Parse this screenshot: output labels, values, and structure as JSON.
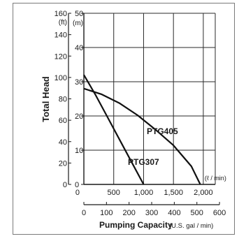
{
  "chart_data": {
    "type": "line",
    "ylabel": "Total Head",
    "xlabel": "Pumping Capacity",
    "y_axis_ft": {
      "unit": "(ft)",
      "range": [
        0,
        160
      ],
      "ticks": [
        {
          "value": 0,
          "label": "0"
        },
        {
          "value": 20,
          "label": "20"
        },
        {
          "value": 40,
          "label": "40"
        },
        {
          "value": 60,
          "label": "60"
        },
        {
          "value": 80,
          "label": "80"
        },
        {
          "value": 100,
          "label": "100"
        },
        {
          "value": 120,
          "label": "120"
        },
        {
          "value": 140,
          "label": "140"
        },
        {
          "value": 160,
          "label": "160"
        }
      ]
    },
    "y_axis_m": {
      "unit": "(m)",
      "range": [
        0,
        50
      ],
      "ticks": [
        {
          "value": 0,
          "label": "0"
        },
        {
          "value": 10,
          "label": "10"
        },
        {
          "value": 20,
          "label": "20"
        },
        {
          "value": 30,
          "label": "30"
        },
        {
          "value": 40,
          "label": "40"
        },
        {
          "value": 50,
          "label": "50"
        }
      ]
    },
    "x_axis_lmin": {
      "unit": "(ℓ / min)",
      "range": [
        0,
        2200
      ],
      "ticks": [
        {
          "value": 0,
          "label": "0"
        },
        {
          "value": 500,
          "label": "500"
        },
        {
          "value": 1000,
          "label": "1,000"
        },
        {
          "value": 1500,
          "label": "1,500"
        },
        {
          "value": 2000,
          "label": "2,000"
        }
      ]
    },
    "x_axis_gal": {
      "unit": "(U.S. gal / min)",
      "ticks": [
        {
          "value": 0,
          "label": "0"
        },
        {
          "value": 100,
          "label": "100"
        },
        {
          "value": 200,
          "label": "200"
        },
        {
          "value": 300,
          "label": "300"
        },
        {
          "value": 400,
          "label": "400"
        },
        {
          "value": 500,
          "label": "500"
        },
        {
          "value": 600,
          "label": "600"
        }
      ]
    },
    "grid": true,
    "series": [
      {
        "name": "PTG405",
        "unit_x": "ℓ/min",
        "unit_y": "m",
        "x": [
          0,
          300,
          600,
          900,
          1200,
          1500,
          1800,
          1950
        ],
        "y": [
          28,
          26.3,
          23.7,
          20.2,
          16,
          11.4,
          5.3,
          0
        ]
      },
      {
        "name": "PTG307",
        "unit_x": "ℓ/min",
        "unit_y": "m",
        "x": [
          0,
          200,
          400,
          600,
          800,
          1000
        ],
        "y": [
          32,
          26,
          19.5,
          13,
          6.5,
          0
        ]
      }
    ]
  }
}
